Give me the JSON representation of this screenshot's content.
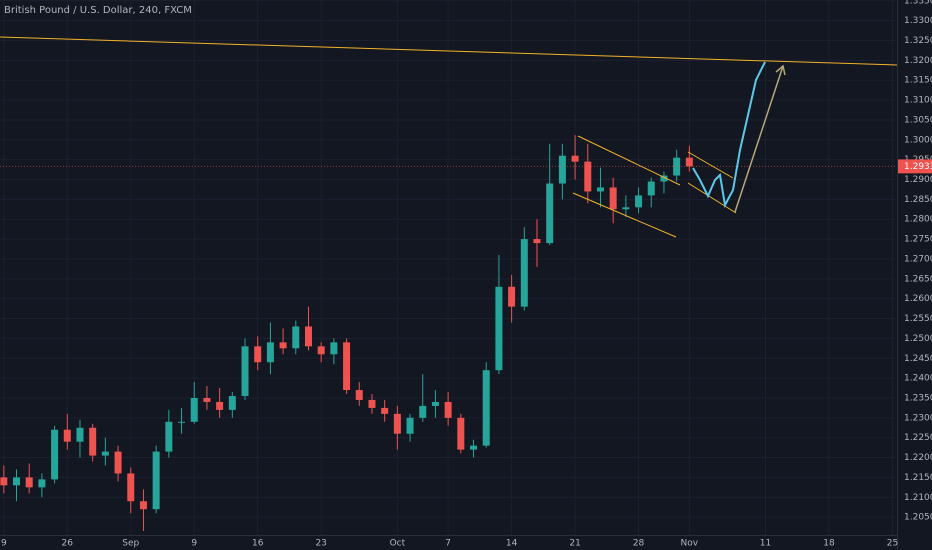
{
  "chart_data": {
    "type": "candlestick",
    "title": "British Pound / U.S. Dollar, 240, FXCM",
    "x": [
      0,
      1,
      2,
      3,
      4,
      5,
      6,
      7,
      8,
      9,
      10,
      11,
      12,
      13,
      14,
      15,
      16,
      17,
      18,
      19,
      20,
      21,
      22,
      23,
      24,
      25,
      26,
      27,
      28,
      29,
      30,
      31,
      32,
      33,
      34,
      35,
      36,
      37,
      38,
      39,
      40,
      41,
      42,
      43,
      44,
      45,
      46,
      47,
      48,
      49,
      50,
      51,
      52,
      53,
      54
    ],
    "open": [
      1.215,
      1.213,
      1.215,
      1.2125,
      1.2145,
      1.227,
      1.224,
      1.2275,
      1.2205,
      1.2215,
      1.216,
      1.209,
      1.207,
      1.2215,
      1.229,
      1.229,
      1.235,
      1.234,
      1.232,
      1.2355,
      1.248,
      1.244,
      1.249,
      1.2475,
      1.253,
      1.248,
      1.246,
      1.249,
      1.237,
      1.2345,
      1.2325,
      1.231,
      1.226,
      1.23,
      1.233,
      1.234,
      1.23,
      1.222,
      1.223,
      1.242,
      1.263,
      1.258,
      1.275,
      1.274,
      1.289,
      1.296,
      1.2945,
      1.287,
      1.288,
      1.2825,
      1.283,
      1.286,
      1.2895,
      1.291,
      1.2955
    ],
    "high": [
      1.218,
      1.217,
      1.2185,
      1.216,
      1.228,
      1.231,
      1.2295,
      1.2285,
      1.225,
      1.223,
      1.2175,
      1.212,
      1.223,
      1.232,
      1.2325,
      1.239,
      1.238,
      1.2375,
      1.2365,
      1.25,
      1.2505,
      1.254,
      1.2525,
      1.2545,
      1.258,
      1.249,
      1.25,
      1.25,
      1.239,
      1.236,
      1.2345,
      1.233,
      1.231,
      1.241,
      1.237,
      1.2365,
      1.231,
      1.2245,
      1.244,
      1.271,
      1.266,
      1.278,
      1.28,
      1.299,
      1.299,
      1.3012,
      1.299,
      1.293,
      1.2905,
      1.286,
      1.288,
      1.2905,
      1.292,
      1.2975,
      1.2985
    ],
    "low": [
      1.211,
      1.209,
      1.211,
      1.21,
      1.2135,
      1.222,
      1.22,
      1.219,
      1.218,
      1.214,
      1.206,
      1.2015,
      1.206,
      1.22,
      1.226,
      1.2285,
      1.232,
      1.23,
      1.23,
      1.2345,
      1.242,
      1.241,
      1.246,
      1.246,
      1.247,
      1.244,
      1.2435,
      1.236,
      1.233,
      1.231,
      1.229,
      1.222,
      1.224,
      1.229,
      1.23,
      1.228,
      1.221,
      1.22,
      1.2225,
      1.241,
      1.254,
      1.257,
      1.268,
      1.2735,
      1.285,
      1.29,
      1.284,
      1.283,
      1.279,
      1.2805,
      1.2815,
      1.283,
      1.2865,
      1.2895,
      1.292
    ],
    "close": [
      1.213,
      1.215,
      1.2125,
      1.2145,
      1.227,
      1.224,
      1.2275,
      1.2205,
      1.2215,
      1.216,
      1.209,
      1.207,
      1.2215,
      1.229,
      1.229,
      1.235,
      1.234,
      1.232,
      1.2355,
      1.248,
      1.244,
      1.249,
      1.2475,
      1.253,
      1.248,
      1.246,
      1.249,
      1.237,
      1.2345,
      1.2325,
      1.231,
      1.226,
      1.23,
      1.233,
      1.234,
      1.23,
      1.222,
      1.223,
      1.242,
      1.263,
      1.258,
      1.275,
      1.274,
      1.289,
      1.296,
      1.2945,
      1.287,
      1.288,
      1.2825,
      1.283,
      1.286,
      1.2895,
      1.291,
      1.2955,
      1.29331
    ],
    "up_color": "#26a69a",
    "down_color": "#ef5350",
    "last_price": 1.29331,
    "xlim": [
      -0.3,
      70.2
    ],
    "ylim": [
      1.2005,
      1.3352
    ],
    "xticks": [
      {
        "value": 0,
        "label": "9"
      },
      {
        "value": 5,
        "label": "26"
      },
      {
        "value": 10,
        "label": "Sep"
      },
      {
        "value": 15,
        "label": "9"
      },
      {
        "value": 20,
        "label": "16"
      },
      {
        "value": 25,
        "label": "23"
      },
      {
        "value": 31,
        "label": "Oct"
      },
      {
        "value": 35,
        "label": "7"
      },
      {
        "value": 40,
        "label": "14"
      },
      {
        "value": 45,
        "label": "21"
      },
      {
        "value": 50,
        "label": "28"
      },
      {
        "value": 54,
        "label": "Nov"
      },
      {
        "value": 60,
        "label": "11"
      },
      {
        "value": 65,
        "label": "18"
      },
      {
        "value": 70,
        "label": "25"
      }
    ],
    "yticks": [
      {
        "value": 1.205,
        "label": "1.20500"
      },
      {
        "value": 1.21,
        "label": "1.21000"
      },
      {
        "value": 1.215,
        "label": "1.21500"
      },
      {
        "value": 1.22,
        "label": "1.22000"
      },
      {
        "value": 1.225,
        "label": "1.22500"
      },
      {
        "value": 1.23,
        "label": "1.23000"
      },
      {
        "value": 1.235,
        "label": "1.23500"
      },
      {
        "value": 1.24,
        "label": "1.24000"
      },
      {
        "value": 1.245,
        "label": "1.24500"
      },
      {
        "value": 1.25,
        "label": "1.25000"
      },
      {
        "value": 1.255,
        "label": "1.25500"
      },
      {
        "value": 1.26,
        "label": "1.26000"
      },
      {
        "value": 1.265,
        "label": "1.26500"
      },
      {
        "value": 1.27,
        "label": "1.27000"
      },
      {
        "value": 1.275,
        "label": "1.27500"
      },
      {
        "value": 1.28,
        "label": "1.28000"
      },
      {
        "value": 1.285,
        "label": "1.28500"
      },
      {
        "value": 1.29,
        "label": "1.29000"
      },
      {
        "value": 1.295,
        "label": "1.29500"
      },
      {
        "value": 1.3,
        "label": "1.30000"
      },
      {
        "value": 1.305,
        "label": "1.30500"
      },
      {
        "value": 1.31,
        "label": "1.31000"
      },
      {
        "value": 1.315,
        "label": "1.31500"
      },
      {
        "value": 1.32,
        "label": "1.32000"
      },
      {
        "value": 1.325,
        "label": "1.32500"
      },
      {
        "value": 1.33,
        "label": "1.33000"
      },
      {
        "value": 1.335,
        "label": "1.33500"
      }
    ]
  }
}
